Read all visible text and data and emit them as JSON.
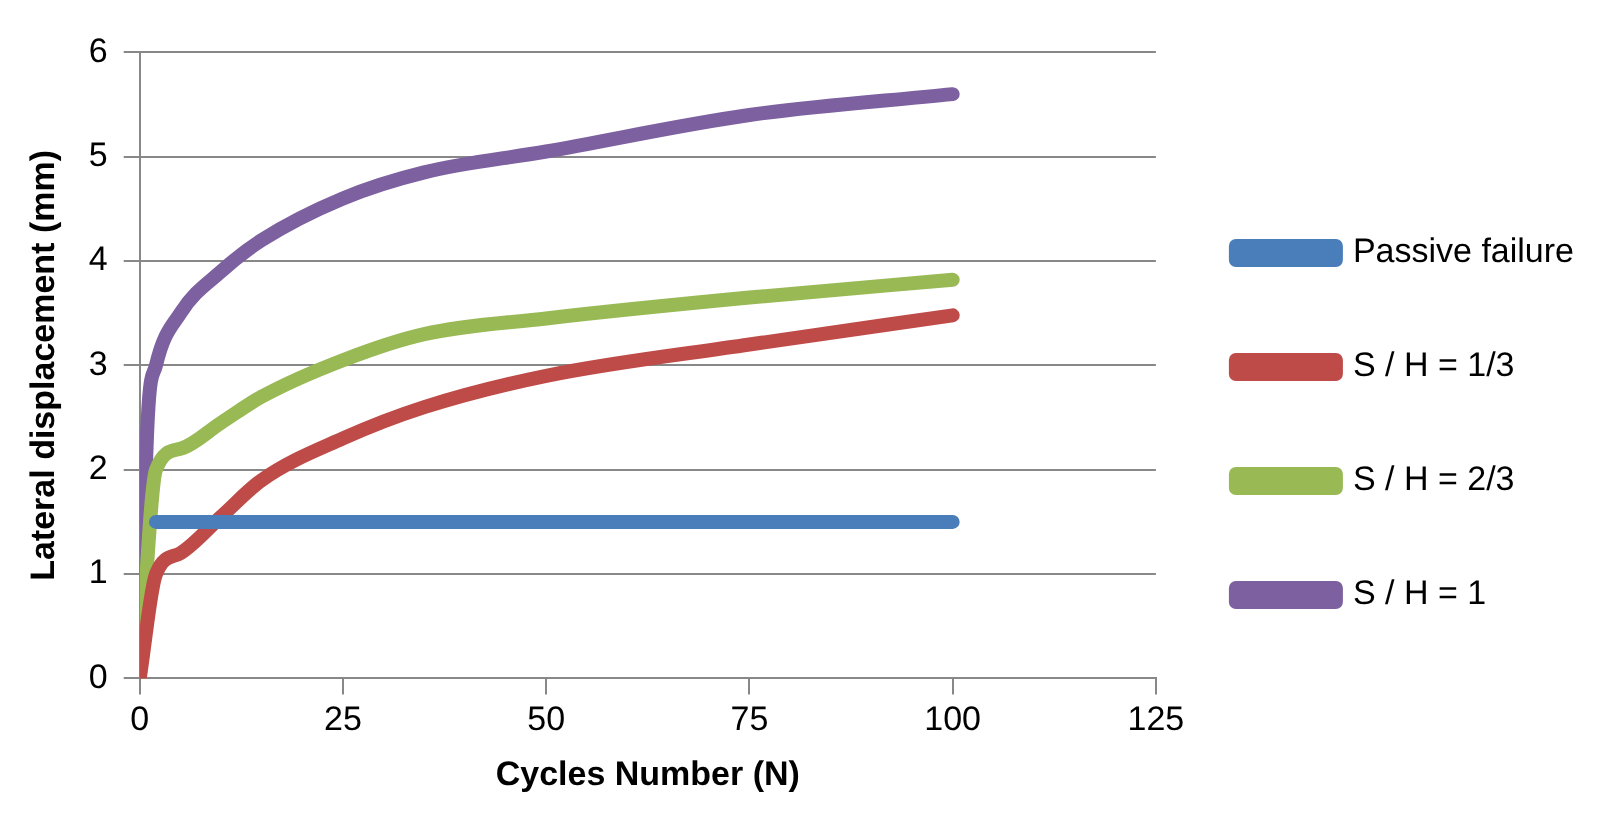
{
  "chart_data": {
    "type": "line",
    "xlabel": "Cycles Number (N)",
    "ylabel": "Lateral displacement (mm)",
    "xlim": [
      0,
      125
    ],
    "xticks": [
      0,
      25,
      50,
      75,
      100,
      125
    ],
    "ylim": [
      0,
      6
    ],
    "yticks": [
      0,
      1,
      2,
      3,
      4,
      5,
      6
    ],
    "grid": "y",
    "legend": "right",
    "marker": "none",
    "line_style": "solid",
    "series": [
      {
        "name": "Passive failure",
        "color": "#4a7ebb",
        "x": [
          2,
          100
        ],
        "values": [
          1.5,
          1.5
        ]
      },
      {
        "name": "S / H = 1/3",
        "color": "#be4b48",
        "x": [
          0,
          2,
          5,
          10,
          15,
          25,
          35,
          50,
          75,
          100
        ],
        "values": [
          0,
          1.0,
          1.2,
          1.55,
          1.9,
          2.3,
          2.6,
          2.9,
          3.2,
          3.48
        ]
      },
      {
        "name": "S / H = 2/3",
        "color": "#98b954",
        "x": [
          0,
          2,
          5,
          10,
          15,
          25,
          35,
          50,
          75,
          100
        ],
        "values": [
          0,
          2.0,
          2.2,
          2.45,
          2.7,
          3.05,
          3.3,
          3.45,
          3.65,
          3.82
        ]
      },
      {
        "name": "S / H = 1",
        "color": "#7d60a0",
        "x": [
          0,
          1,
          2,
          5,
          10,
          15,
          25,
          35,
          50,
          75,
          100
        ],
        "values": [
          0,
          2.5,
          3.0,
          3.5,
          3.9,
          4.2,
          4.6,
          4.85,
          5.05,
          5.4,
          5.6
        ]
      }
    ]
  }
}
